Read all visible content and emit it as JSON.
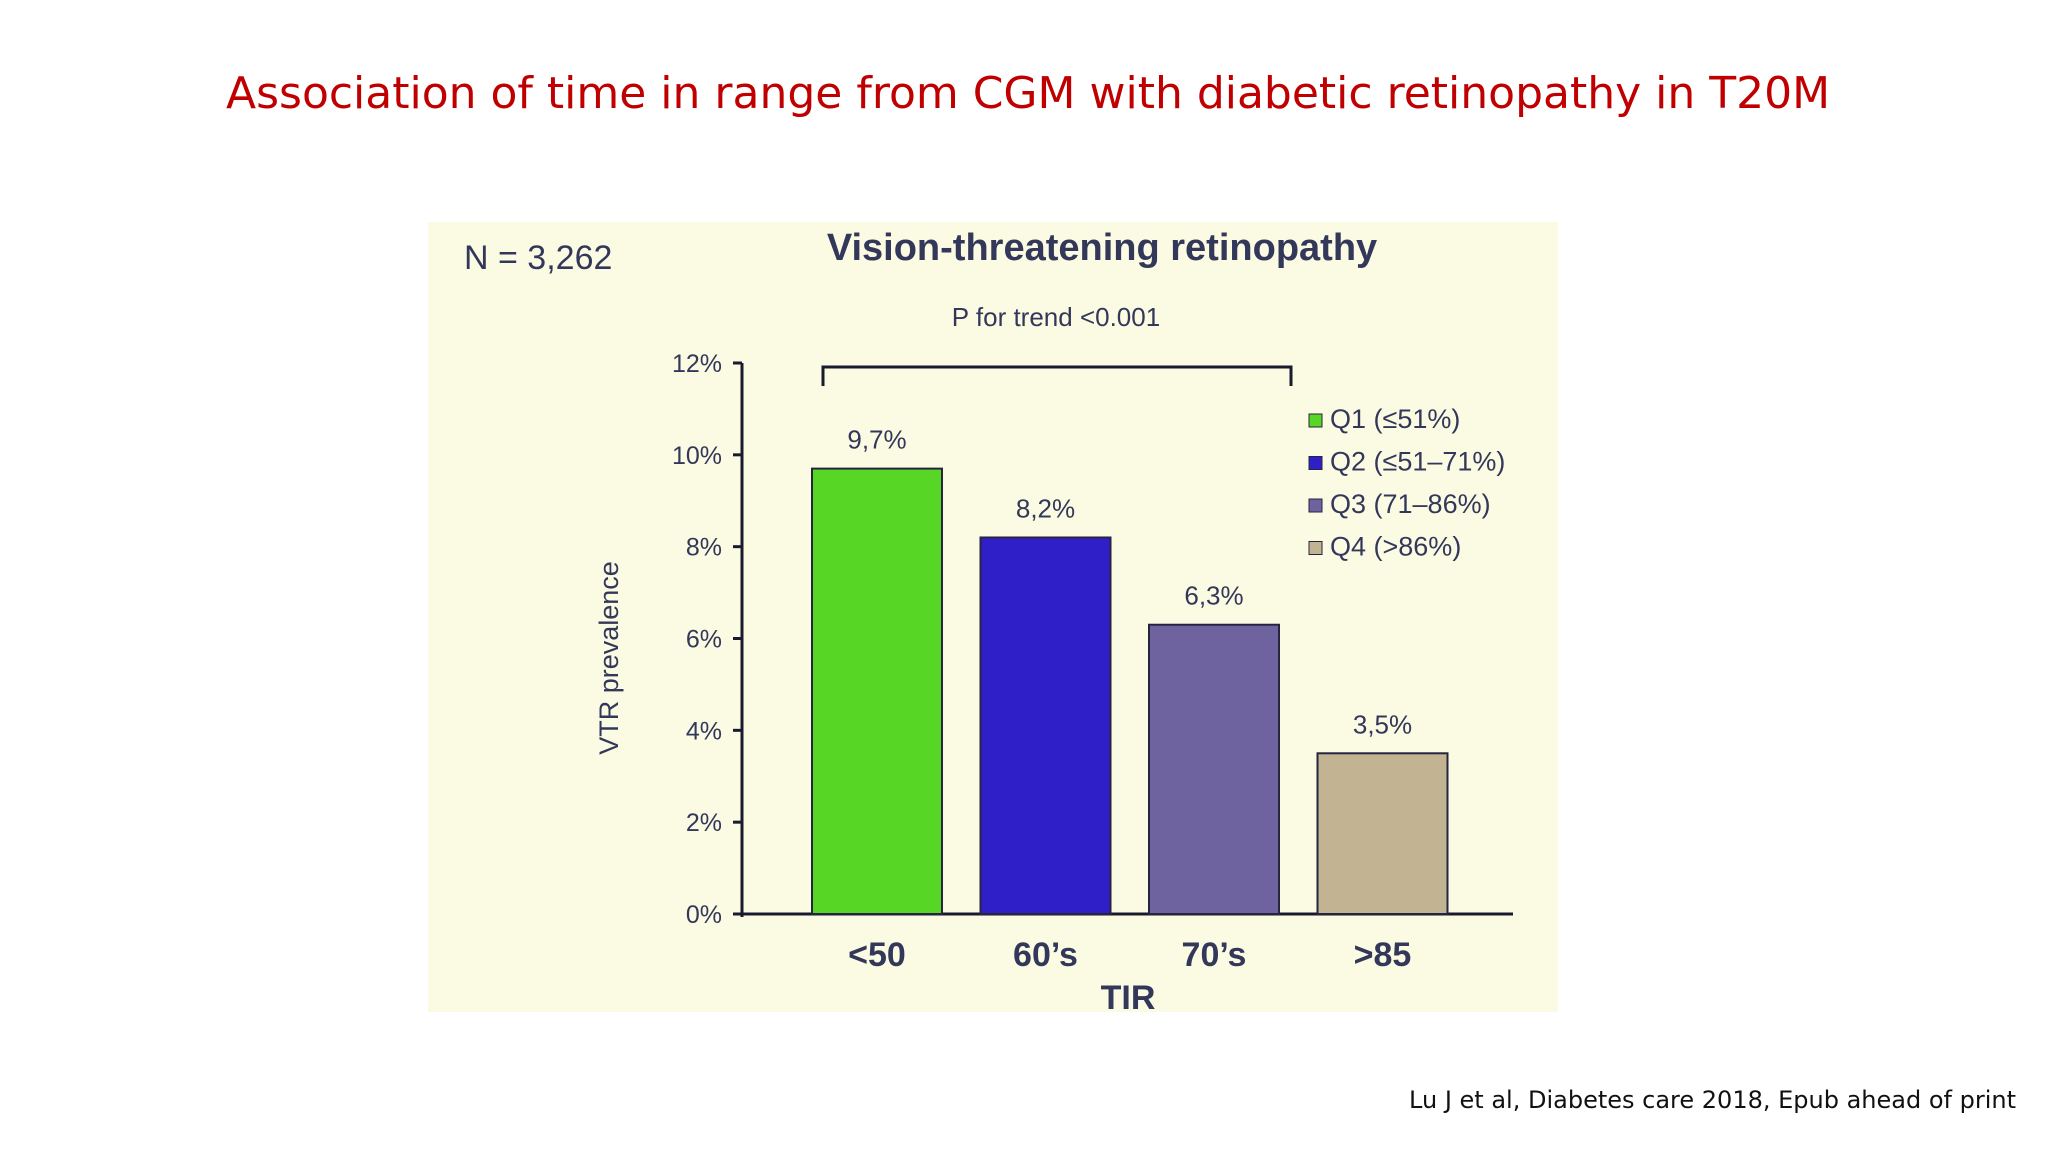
{
  "slide": {
    "title": "Association of time in range from CGM with diabetic retinopathy in T20M",
    "citation": "Lu J et al,  Diabetes care 2018, Epub ahead of print"
  },
  "chart_data": {
    "type": "bar",
    "title": "Vision-threatening retinopathy",
    "sample_size": "N = 3,262",
    "trend_annotation": "P for trend <0.001",
    "xlabel": "TIR",
    "ylabel": "VTR prevalence",
    "ylim": [
      0,
      12
    ],
    "y_ticks": [
      0,
      2,
      4,
      6,
      8,
      10,
      12
    ],
    "y_tick_labels": [
      "0%",
      "2%",
      "4%",
      "6%",
      "8%",
      "10%",
      "12%"
    ],
    "categories": [
      "<50",
      "60’s",
      "70’s",
      ">85"
    ],
    "values": [
      9.7,
      8.2,
      6.3,
      3.5
    ],
    "data_labels": [
      "9,7%",
      "8,2%",
      "6,3%",
      "3,5%"
    ],
    "colors": [
      "#58d626",
      "#2f1fc8",
      "#6e639e",
      "#c2b392"
    ],
    "legend": {
      "position": "top-right",
      "entries": [
        "Q1 (≤51%)",
        "Q2 (≤51–71%)",
        "Q3 (71–86%)",
        "Q4 (>86%)"
      ]
    }
  }
}
